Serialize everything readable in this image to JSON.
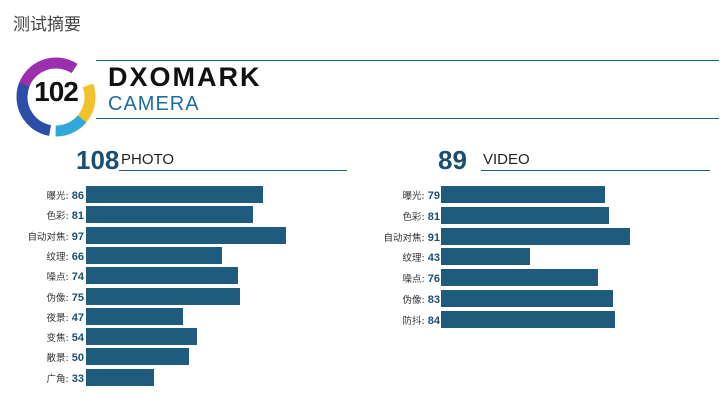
{
  "page_title": "测试摘要",
  "badge": {
    "score": "102"
  },
  "brand": {
    "name": "DXOMARK",
    "category": "CAMERA"
  },
  "colors": {
    "bar": "#1f5b7d",
    "score_text": "#1b4f72",
    "line": "#1b5f86"
  },
  "chart_data": [
    {
      "type": "bar",
      "orientation": "horizontal",
      "title": "PHOTO",
      "total": "108",
      "categories": [
        "曝光",
        "色彩",
        "自动对焦",
        "纹理",
        "噪点",
        "伪像",
        "夜景",
        "变焦",
        "散景",
        "广角"
      ],
      "values": [
        86,
        81,
        97,
        66,
        74,
        75,
        47,
        54,
        50,
        33
      ],
      "xlim": [
        0,
        100
      ],
      "grid": false
    },
    {
      "type": "bar",
      "orientation": "horizontal",
      "title": "VIDEO",
      "total": "89",
      "categories": [
        "曝光",
        "色彩",
        "自动对焦",
        "纹理",
        "噪点",
        "伪像",
        "防抖"
      ],
      "values": [
        79,
        81,
        91,
        43,
        76,
        83,
        84
      ],
      "xlim": [
        0,
        100
      ],
      "grid": false
    }
  ]
}
